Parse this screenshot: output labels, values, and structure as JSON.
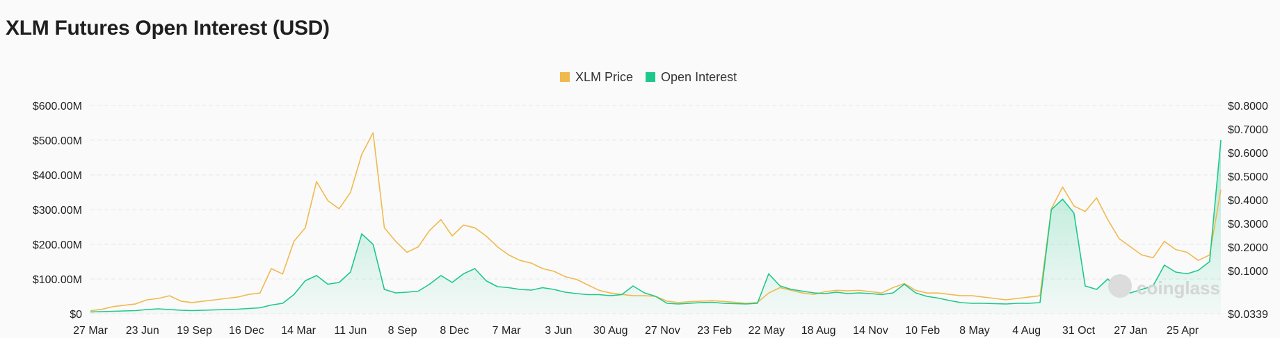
{
  "page": {
    "title": "XLM Futures Open Interest (USD)",
    "watermark": "coinglass"
  },
  "colors": {
    "price": "#f0b94e",
    "oi": "#1ec88a",
    "grid": "#e7e7e7",
    "background": "#fafafa"
  },
  "chart_data": {
    "type": "line",
    "title": "XLM Futures Open Interest (USD)",
    "legend_position": "top-center",
    "grid": true,
    "x_ticks": [
      "27 Mar",
      "23 Jun",
      "19 Sep",
      "16 Dec",
      "14 Mar",
      "11 Jun",
      "8 Sep",
      "8 Dec",
      "7 Mar",
      "3 Jun",
      "30 Aug",
      "27 Nov",
      "23 Feb",
      "22 May",
      "18 Aug",
      "14 Nov",
      "10 Feb",
      "8 May",
      "4 Aug",
      "31 Oct",
      "27 Jan",
      "25 Apr"
    ],
    "y_left": {
      "ticks": [
        "$0",
        "$100.00M",
        "$200.00M",
        "$300.00M",
        "$400.00M",
        "$500.00M",
        "$600.00M"
      ],
      "range": [
        0,
        600
      ]
    },
    "y_right": {
      "ticks": [
        "$0.0339",
        "$0.1000",
        "$0.2000",
        "$0.3000",
        "$0.4000",
        "$0.5000",
        "$0.6000",
        "$0.7000",
        "$0.8000"
      ],
      "range": [
        0.0339,
        0.8
      ]
    },
    "x_range": [
      0,
      100
    ],
    "series": [
      {
        "name": "XLM Price",
        "axis": "right",
        "color": "#f0b94e",
        "x": [
          0,
          1,
          2,
          3,
          4,
          5,
          6,
          7,
          8,
          9,
          10,
          11,
          12,
          13,
          14,
          15,
          16,
          17,
          18,
          19,
          20,
          21,
          22,
          23,
          24,
          25,
          26,
          27,
          28,
          29,
          30,
          31,
          32,
          33,
          34,
          35,
          36,
          37,
          38,
          39,
          40,
          41,
          42,
          43,
          44,
          45,
          46,
          47,
          48,
          49,
          50,
          51,
          52,
          53,
          54,
          55,
          56,
          57,
          58,
          59,
          60,
          61,
          62,
          63,
          64,
          65,
          66,
          67,
          68,
          69,
          70,
          71,
          72,
          73,
          74,
          75,
          76,
          77,
          78,
          79,
          80,
          81,
          82,
          83,
          84,
          85,
          86,
          87,
          88,
          89,
          90,
          91,
          92,
          93,
          94,
          95,
          96,
          97,
          98,
          99,
          100
        ],
        "values": [
          0.045,
          0.05,
          0.06,
          0.065,
          0.07,
          0.085,
          0.09,
          0.1,
          0.08,
          0.075,
          0.08,
          0.085,
          0.09,
          0.095,
          0.105,
          0.11,
          0.2,
          0.18,
          0.3,
          0.35,
          0.52,
          0.45,
          0.42,
          0.48,
          0.62,
          0.7,
          0.35,
          0.3,
          0.26,
          0.28,
          0.34,
          0.38,
          0.32,
          0.36,
          0.35,
          0.32,
          0.28,
          0.25,
          0.23,
          0.22,
          0.2,
          0.19,
          0.17,
          0.16,
          0.14,
          0.12,
          0.11,
          0.105,
          0.1,
          0.1,
          0.098,
          0.08,
          0.075,
          0.078,
          0.08,
          0.082,
          0.079,
          0.076,
          0.072,
          0.075,
          0.11,
          0.13,
          0.12,
          0.11,
          0.105,
          0.115,
          0.12,
          0.118,
          0.12,
          0.115,
          0.11,
          0.13,
          0.145,
          0.12,
          0.11,
          0.11,
          0.105,
          0.1,
          0.1,
          0.095,
          0.09,
          0.085,
          0.09,
          0.095,
          0.1,
          0.42,
          0.5,
          0.43,
          0.41,
          0.46,
          0.38,
          0.31,
          0.28,
          0.25,
          0.24,
          0.3,
          0.27,
          0.26,
          0.23,
          0.25,
          0.49
        ]
      },
      {
        "name": "Open Interest",
        "axis": "left",
        "color": "#1ec88a",
        "x": [
          0,
          1,
          2,
          3,
          4,
          5,
          6,
          7,
          8,
          9,
          10,
          11,
          12,
          13,
          14,
          15,
          16,
          17,
          18,
          19,
          20,
          21,
          22,
          23,
          24,
          25,
          26,
          27,
          28,
          29,
          30,
          31,
          32,
          33,
          34,
          35,
          36,
          37,
          38,
          39,
          40,
          41,
          42,
          43,
          44,
          45,
          46,
          47,
          48,
          49,
          50,
          51,
          52,
          53,
          54,
          55,
          56,
          57,
          58,
          59,
          60,
          61,
          62,
          63,
          64,
          65,
          66,
          67,
          68,
          69,
          70,
          71,
          72,
          73,
          74,
          75,
          76,
          77,
          78,
          79,
          80,
          81,
          82,
          83,
          84,
          85,
          86,
          87,
          88,
          89,
          90,
          91,
          92,
          93,
          94,
          95,
          96,
          97,
          98,
          99,
          100
        ],
        "values": [
          5,
          6,
          7,
          8,
          9,
          12,
          14,
          12,
          10,
          9,
          10,
          11,
          12,
          13,
          15,
          17,
          25,
          30,
          55,
          95,
          110,
          85,
          90,
          120,
          230,
          200,
          70,
          60,
          62,
          65,
          85,
          110,
          90,
          115,
          130,
          95,
          78,
          75,
          70,
          68,
          75,
          70,
          62,
          58,
          55,
          55,
          52,
          55,
          80,
          60,
          50,
          30,
          28,
          30,
          32,
          33,
          30,
          29,
          28,
          30,
          115,
          80,
          70,
          65,
          60,
          58,
          62,
          58,
          60,
          58,
          55,
          60,
          85,
          60,
          50,
          45,
          38,
          32,
          30,
          30,
          29,
          28,
          30,
          30,
          32,
          300,
          330,
          290,
          80,
          70,
          100,
          65,
          60,
          70,
          80,
          140,
          120,
          115,
          125,
          150,
          500
        ]
      }
    ]
  }
}
